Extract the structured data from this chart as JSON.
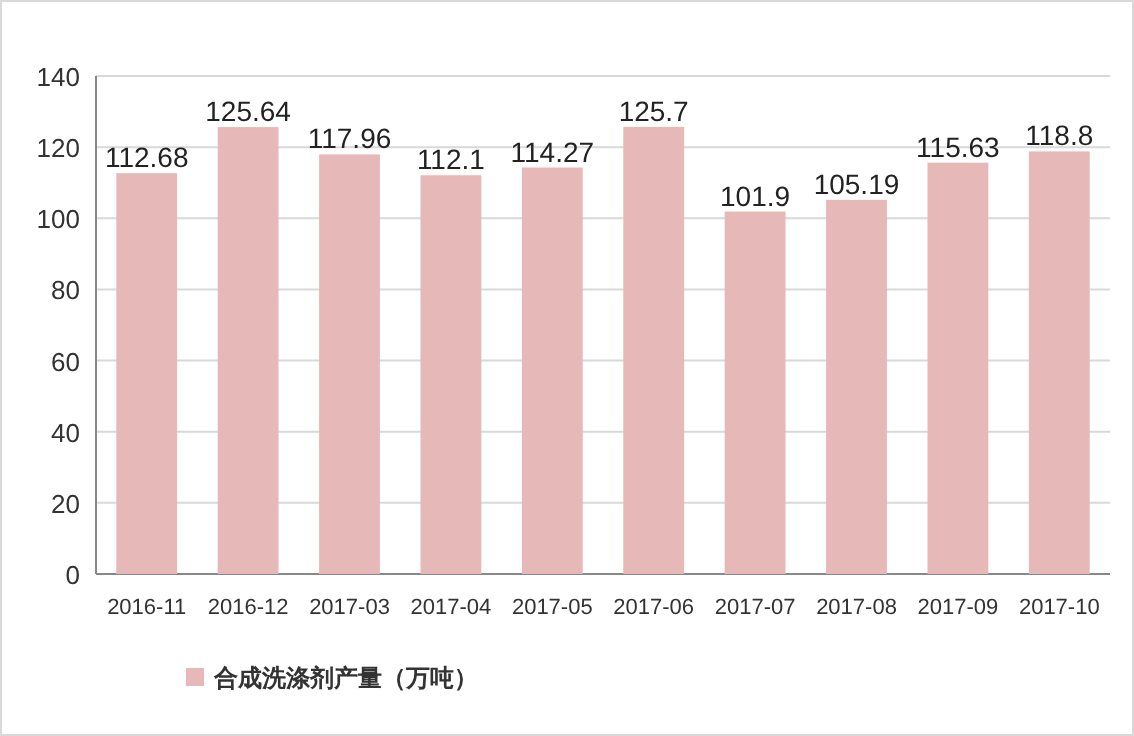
{
  "chart_data": {
    "type": "bar",
    "categories": [
      "2016-11",
      "2016-12",
      "2017-03",
      "2017-04",
      "2017-05",
      "2017-06",
      "2017-07",
      "2017-08",
      "2017-09",
      "2017-10"
    ],
    "series": [
      {
        "name": "合成洗涤剂产量（万吨）",
        "color": "#e6b9b8",
        "values": [
          112.68,
          125.64,
          117.96,
          112.1,
          114.27,
          125.7,
          101.9,
          105.19,
          115.63,
          118.8
        ]
      }
    ],
    "ylim": [
      0,
      140
    ],
    "yticks": [
      0,
      20,
      40,
      60,
      80,
      100,
      120,
      140
    ],
    "grid": "y",
    "data_labels": true,
    "legend": "bottom"
  }
}
